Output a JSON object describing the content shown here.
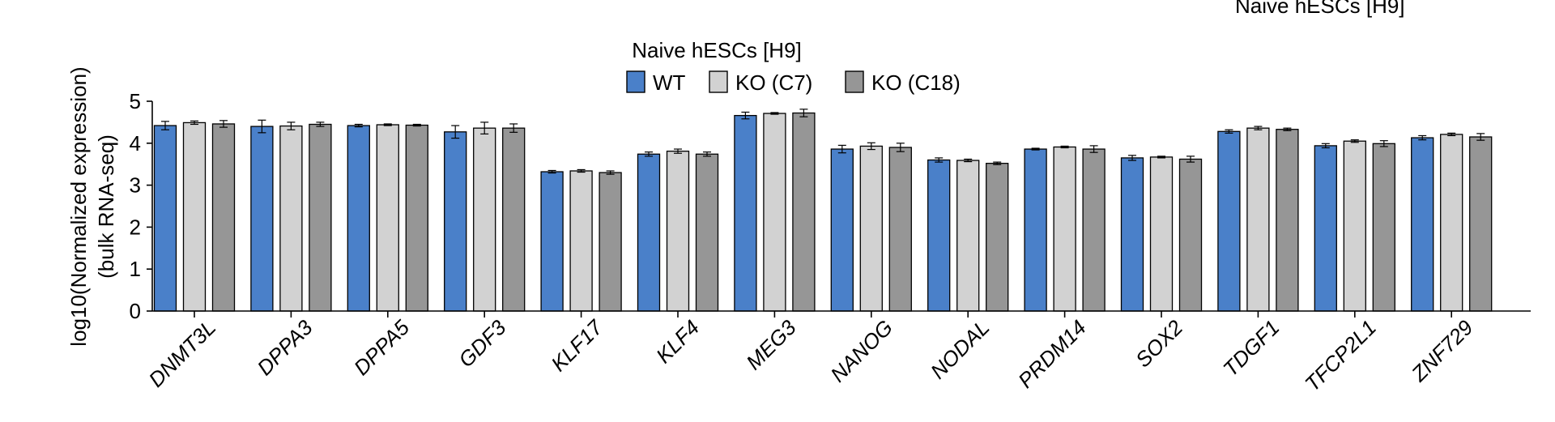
{
  "corner_label": "Naive hESCs [H9]",
  "chart_data": {
    "type": "bar",
    "title": "Naive hESCs [H9]",
    "ylabel_lines": [
      "log10(Normalized expression)",
      "(bulk RNA-seq)"
    ],
    "xlabel": "",
    "ylim": [
      0,
      5
    ],
    "yticks": [
      0,
      1,
      2,
      3,
      4,
      5
    ],
    "legend_position": "top-center",
    "grid": false,
    "categories": [
      "DNMT3L",
      "DPPA3",
      "DPPA5",
      "GDF3",
      "KLF17",
      "KLF4",
      "MEG3",
      "NANOG",
      "NODAL",
      "PRDM14",
      "SOX2",
      "TDGF1",
      "TFCP2L1",
      "ZNF729"
    ],
    "series": [
      {
        "name": "WT",
        "color": "#4a80c9",
        "values": [
          4.42,
          4.4,
          4.42,
          4.27,
          3.32,
          3.74,
          4.66,
          3.86,
          3.6,
          3.86,
          3.65,
          4.28,
          3.94,
          4.13
        ],
        "errors": [
          0.1,
          0.15,
          0.03,
          0.15,
          0.03,
          0.05,
          0.08,
          0.09,
          0.05,
          0.02,
          0.06,
          0.04,
          0.05,
          0.05
        ]
      },
      {
        "name": "KO (C7)",
        "color": "#d2d2d2",
        "values": [
          4.49,
          4.41,
          4.44,
          4.36,
          3.34,
          3.81,
          4.71,
          3.93,
          3.59,
          3.91,
          3.67,
          4.36,
          4.05,
          4.21
        ],
        "errors": [
          0.04,
          0.09,
          0.02,
          0.14,
          0.03,
          0.05,
          0.02,
          0.08,
          0.03,
          0.02,
          0.02,
          0.04,
          0.03,
          0.03
        ]
      },
      {
        "name": "KO (C18)",
        "color": "#969696",
        "values": [
          4.46,
          4.45,
          4.43,
          4.36,
          3.3,
          3.74,
          4.72,
          3.9,
          3.52,
          3.86,
          3.62,
          4.33,
          3.99,
          4.15
        ],
        "errors": [
          0.08,
          0.05,
          0.02,
          0.1,
          0.04,
          0.05,
          0.09,
          0.1,
          0.03,
          0.08,
          0.07,
          0.03,
          0.07,
          0.08
        ]
      }
    ]
  }
}
